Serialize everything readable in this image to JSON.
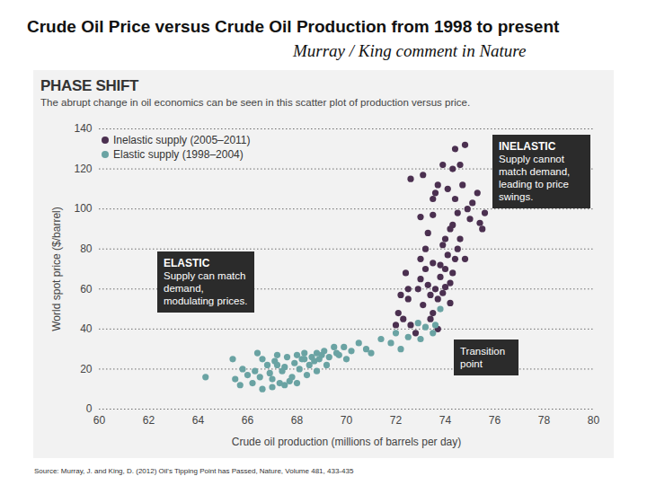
{
  "chart_data": {
    "type": "scatter",
    "heading": "Crude Oil Price versus Crude Oil Production from 1998 to present",
    "heading_note": "Murray / King comment in Nature",
    "title": "PHASE SHIFT",
    "subtitle": "The abrupt change in oil economics can be seen in this scatter plot of production versus price.",
    "x_label": "Crude oil production (millions of barrels per day)",
    "y_label": "World spot price ($/barrel)",
    "source": "Source: Murray, J. and King, D. (2012) Oil's Tipping Point has Passed, Nature, Volume 481, 433-435",
    "annotations": [
      {
        "title": "INELASTIC",
        "text": "Supply cannot match demand, leading to price swings."
      },
      {
        "title": "ELASTIC",
        "text": "Supply can match demand, modulating prices."
      },
      {
        "title": "",
        "text": "Transition point"
      }
    ],
    "xlim": [
      60,
      80
    ],
    "xticks": [
      60,
      62,
      64,
      66,
      68,
      70,
      72,
      74,
      76,
      78,
      80
    ],
    "ylim": [
      0,
      140
    ],
    "yticks": [
      0,
      20,
      40,
      60,
      80,
      100,
      120,
      140
    ],
    "grid": true,
    "legend": "top-left",
    "marker": "circle",
    "series": [
      {
        "name": "Inelastic supply (2005–2011)",
        "color": "#4b3050",
        "x": [
          72.0,
          72.3,
          72.1,
          72.4,
          72.5,
          72.8,
          72.9,
          73.0,
          73.1,
          73.2,
          73.0,
          73.3,
          73.4,
          73.5,
          73.5,
          73.6,
          73.7,
          73.8,
          73.9,
          73.8,
          74.0,
          74.1,
          74.2,
          74.0,
          74.3,
          74.2,
          74.4,
          74.5,
          74.3,
          74.5,
          74.6,
          74.4,
          74.7,
          74.8,
          74.9,
          75.0,
          75.1,
          75.3,
          75.4,
          75.5,
          75.6,
          73.1,
          73.7,
          73.9,
          74.1,
          74.3,
          74.4,
          74.8,
          73.5,
          73.6,
          73.0,
          73.2,
          72.6,
          72.2,
          72.6,
          73.4,
          74.6,
          74.2,
          73.7,
          72.5,
          73.3,
          74.0,
          73.9,
          73.5
        ],
        "values": [
          42,
          45,
          48,
          68,
          55,
          38,
          60,
          65,
          52,
          70,
          75,
          62,
          57,
          48,
          73,
          60,
          55,
          66,
          58,
          72,
          61,
          77,
          53,
          85,
          68,
          90,
          75,
          80,
          92,
          98,
          85,
          105,
          112,
          75,
          100,
          95,
          103,
          108,
          93,
          90,
          98,
          117,
          112,
          122,
          110,
          120,
          130,
          132,
          97,
          108,
          96,
          80,
          115,
          57,
          42,
          45,
          122,
          63,
          40,
          60,
          88,
          70,
          82,
          105
        ]
      },
      {
        "name": "Elastic supply (1998–2004)",
        "color": "#6aa3a3",
        "x": [
          64.3,
          65.4,
          65.5,
          65.8,
          66.0,
          65.7,
          66.2,
          66.4,
          66.6,
          66.8,
          66.9,
          67.0,
          67.1,
          67.2,
          67.3,
          67.4,
          67.5,
          67.6,
          67.7,
          67.8,
          67.9,
          68.0,
          68.1,
          68.2,
          68.3,
          68.4,
          68.5,
          68.6,
          68.7,
          68.8,
          68.9,
          69.0,
          69.1,
          69.3,
          69.5,
          69.7,
          69.9,
          70.0,
          70.2,
          70.5,
          70.8,
          71.0,
          71.4,
          71.8,
          72.2,
          72.5,
          72.9,
          73.2,
          73.5,
          73.8,
          73.6,
          66.3,
          66.6,
          67.0,
          67.5,
          68.0,
          68.8,
          69.2,
          66.5,
          67.2,
          68.3,
          69.6,
          72.0,
          73.0
        ],
        "values": [
          16,
          25,
          15,
          20,
          17,
          12,
          13,
          28,
          25,
          22,
          18,
          11,
          24,
          27,
          13,
          19,
          21,
          26,
          14,
          16,
          23,
          27,
          20,
          25,
          28,
          17,
          22,
          26,
          24,
          28,
          25,
          27,
          29,
          26,
          31,
          27,
          31,
          25,
          29,
          33,
          30,
          28,
          35,
          33,
          30,
          36,
          43,
          41,
          38,
          50,
          42,
          19,
          10,
          15,
          12,
          13,
          19,
          22,
          16,
          22,
          25,
          28,
          38,
          35
        ]
      }
    ]
  }
}
